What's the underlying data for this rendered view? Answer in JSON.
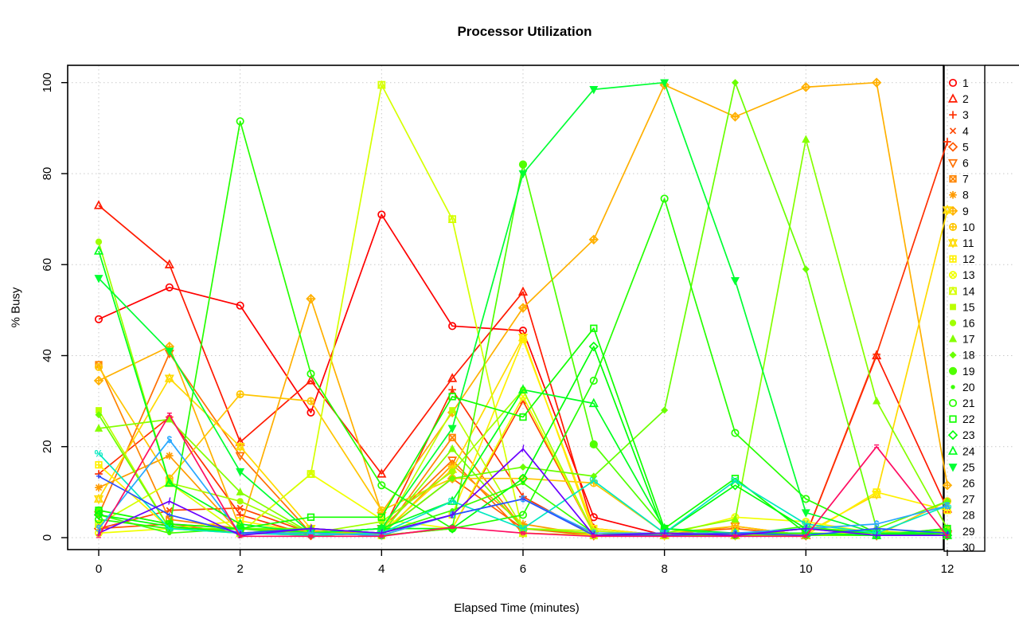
{
  "title": "Processor Utilization",
  "axes": {
    "x": {
      "label": "Elapsed Time (minutes)",
      "ticks": [
        0,
        2,
        4,
        6,
        8,
        10,
        12
      ]
    },
    "y": {
      "label": "% Busy",
      "ticks": [
        0,
        20,
        40,
        60,
        80,
        100
      ]
    }
  },
  "legend": {
    "position": "right",
    "labels": [
      "1",
      "2",
      "3",
      "4",
      "5",
      "6",
      "7",
      "8",
      "9",
      "10",
      "11",
      "12",
      "13",
      "14",
      "15",
      "16",
      "17",
      "18",
      "19",
      "20",
      "21",
      "22",
      "23",
      "24",
      "25",
      "26",
      "27",
      "28",
      "29",
      "30"
    ]
  },
  "chart_data": {
    "type": "line",
    "title": "Processor Utilization",
    "xlabel": "Elapsed Time (minutes)",
    "ylabel": "% Busy",
    "xlim": [
      -0.45,
      12.5
    ],
    "ylim": [
      -2.5,
      104
    ],
    "grid": "dotted",
    "x": [
      0,
      1,
      2,
      3,
      4,
      5,
      6,
      7,
      8,
      9,
      10,
      11,
      12
    ],
    "series": [
      {
        "name": "1",
        "color": "#FF0000",
        "marker": "circle",
        "values": [
          48,
          55,
          51,
          27.5,
          71,
          46.5,
          45.5,
          4.5,
          0.5,
          0.5,
          0.5,
          0.5,
          1
        ]
      },
      {
        "name": "2",
        "color": "#FF1A00",
        "marker": "triangle",
        "values": [
          73,
          60,
          21,
          34.5,
          14,
          35,
          54,
          2,
          0.5,
          0.5,
          0.5,
          40,
          6.3
        ]
      },
      {
        "name": "3",
        "color": "#FF3000",
        "marker": "plus",
        "values": [
          14,
          26.5,
          5,
          0.5,
          1,
          32.5,
          9,
          0.5,
          0.5,
          1,
          0.5,
          40.3,
          87
        ]
      },
      {
        "name": "4",
        "color": "#FF4500",
        "marker": "cross",
        "values": [
          2,
          6,
          6.5,
          1,
          0.5,
          2,
          30,
          1,
          0.5,
          0.5,
          2,
          0.5,
          0.5
        ]
      },
      {
        "name": "5",
        "color": "#FF5A00",
        "marker": "diamond",
        "values": [
          2,
          3,
          1,
          0.5,
          1,
          13,
          2,
          0.5,
          1,
          2,
          0.5,
          0.5,
          1.5
        ]
      },
      {
        "name": "6",
        "color": "#FF7000",
        "marker": "triangle-down",
        "values": [
          5,
          40.5,
          18,
          1,
          2,
          17,
          1,
          0.5,
          0.5,
          2.5,
          0.5,
          0.5,
          0.5
        ]
      },
      {
        "name": "7",
        "color": "#FF8500",
        "marker": "square-cross",
        "values": [
          38,
          4,
          2,
          1.5,
          0.5,
          22,
          2,
          1,
          0.5,
          0.5,
          1,
          0.5,
          0.5
        ]
      },
      {
        "name": "8",
        "color": "#FF9A00",
        "marker": "star",
        "values": [
          11,
          18,
          1,
          2,
          0.5,
          16,
          3,
          0.5,
          0.5,
          0.5,
          0.5,
          0.5,
          2
        ]
      },
      {
        "name": "9",
        "color": "#FFB000",
        "marker": "diamond-plus",
        "values": [
          34.5,
          42,
          2,
          52.5,
          5.5,
          27.5,
          50.5,
          65.5,
          99.5,
          92.5,
          99,
          100,
          11.5
        ]
      },
      {
        "name": "10",
        "color": "#FFC500",
        "marker": "circle-plus",
        "values": [
          37.5,
          13,
          31.5,
          30,
          6,
          13,
          13,
          12,
          1,
          2.5,
          0.5,
          0.5,
          8
        ]
      },
      {
        "name": "11",
        "color": "#FFDA00",
        "marker": "star-of-david",
        "values": [
          8.5,
          35,
          20,
          2,
          1,
          15,
          44,
          1,
          0.5,
          0.5,
          1,
          9.5,
          72
        ]
      },
      {
        "name": "12",
        "color": "#FFF000",
        "marker": "square-plus",
        "values": [
          16,
          2,
          3.7,
          1,
          0.5,
          5,
          43.5,
          2,
          0.5,
          0.5,
          0.5,
          10,
          6
        ]
      },
      {
        "name": "13",
        "color": "#F0FF00",
        "marker": "circle-cross",
        "values": [
          1,
          2,
          1,
          14,
          4,
          2,
          31,
          1,
          0.5,
          4.5,
          3.5,
          1,
          0.5
        ]
      },
      {
        "name": "14",
        "color": "#D5FF00",
        "marker": "square-triangle",
        "values": [
          3,
          12,
          1,
          14,
          99.5,
          70,
          1,
          0.5,
          0.5,
          1,
          1,
          1,
          0.5
        ]
      },
      {
        "name": "15",
        "color": "#BBFF00",
        "marker": "square-filled",
        "values": [
          28,
          2,
          1,
          2,
          1,
          28,
          2,
          1.5,
          0.5,
          0.5,
          2,
          1.5,
          0.5
        ]
      },
      {
        "name": "16",
        "color": "#A0FF00",
        "marker": "circle-filled",
        "values": [
          65,
          12,
          8,
          1,
          3.5,
          14.5,
          32.5,
          1,
          0.5,
          0.5,
          2,
          1,
          1.5
        ]
      },
      {
        "name": "17",
        "color": "#85FF00",
        "marker": "triangle-filled",
        "values": [
          24,
          26,
          10,
          1,
          1,
          19.5,
          2,
          1,
          1,
          4,
          87.5,
          30,
          2
        ]
      },
      {
        "name": "18",
        "color": "#6AFF00",
        "marker": "diamond-filled",
        "values": [
          27,
          2,
          2,
          2,
          1,
          13,
          15.5,
          13.5,
          28,
          100,
          59,
          2,
          8
        ]
      },
      {
        "name": "19",
        "color": "#50FF00",
        "marker": "circle-big-filled",
        "values": [
          6,
          3,
          2,
          1,
          0.5,
          2,
          82,
          20.5,
          2,
          0.5,
          0.5,
          0.5,
          0.5
        ]
      },
      {
        "name": "20",
        "color": "#3BFF00",
        "marker": "dot",
        "values": [
          5,
          1,
          2,
          0.5,
          1,
          6,
          12,
          1,
          0.5,
          0.5,
          2.5,
          0.5,
          1
        ]
      },
      {
        "name": "21",
        "color": "#26FF00",
        "marker": "circle",
        "values": [
          4,
          2,
          91.5,
          36,
          11.5,
          2,
          5,
          34.5,
          74.5,
          23,
          8.5,
          1,
          1
        ]
      },
      {
        "name": "22",
        "color": "#11FF00",
        "marker": "square",
        "values": [
          6,
          3,
          2,
          4.5,
          4.5,
          31,
          26.5,
          46,
          2,
          13,
          1,
          0.5,
          2
        ]
      },
      {
        "name": "23",
        "color": "#00FF08",
        "marker": "diamond",
        "values": [
          5,
          2.5,
          1,
          1,
          2,
          2,
          13,
          42,
          1,
          11.5,
          2,
          1,
          0.5
        ]
      },
      {
        "name": "24",
        "color": "#00FF1E",
        "marker": "triangle",
        "values": [
          63,
          12,
          3,
          1,
          2,
          8,
          32.5,
          29.5,
          2,
          1,
          1,
          0.5,
          0.5
        ]
      },
      {
        "name": "25",
        "color": "#00FF33",
        "marker": "triangle-down-filled",
        "values": [
          57,
          41,
          14.5,
          1,
          2,
          24,
          80,
          98.5,
          100,
          56.5,
          5.5,
          1,
          1
        ]
      },
      {
        "name": "26",
        "color": "#00E8C0",
        "marker": "char-%",
        "values": [
          18.5,
          2,
          1,
          0.5,
          1,
          8,
          2,
          12.5,
          1,
          12.5,
          3,
          1,
          7
        ]
      },
      {
        "name": "27",
        "color": "#29A8FF",
        "marker": "char-$",
        "values": [
          2,
          21.5,
          1,
          1,
          0.5,
          5,
          8.5,
          1,
          1,
          1,
          2,
          3,
          7
        ]
      },
      {
        "name": "28",
        "color": "#2B50FF",
        "marker": "char-+",
        "values": [
          13.5,
          5,
          1,
          2,
          1,
          5,
          8.5,
          0.5,
          0.5,
          1,
          0.5,
          2,
          1
        ]
      },
      {
        "name": "29",
        "color": "#6A00FF",
        "marker": "char-/",
        "values": [
          1,
          8,
          0.5,
          2,
          1,
          5,
          19.5,
          0.5,
          1,
          0.5,
          2,
          0.5,
          0.5
        ]
      },
      {
        "name": "30",
        "color": "#FF0D62",
        "marker": "char-=",
        "values": [
          0.3,
          27,
          0.3,
          0.3,
          0.3,
          2.3,
          1,
          0.3,
          0.3,
          0.3,
          0.3,
          20,
          0.3
        ]
      }
    ]
  },
  "style": {
    "grid_color": "#C9C9C9",
    "axis_color": "#000000",
    "background": "#FFFFFF"
  }
}
